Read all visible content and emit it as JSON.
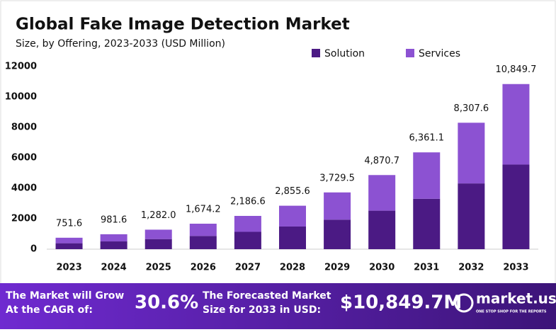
{
  "chart_data": {
    "type": "stacked-bar",
    "title": "Global Fake Image Detection Market",
    "subtitle": "Size, by Offering, 2023-2033 (USD Million)",
    "categories": [
      "2023",
      "2024",
      "2025",
      "2026",
      "2027",
      "2028",
      "2029",
      "2030",
      "2031",
      "2032",
      "2033"
    ],
    "series": [
      {
        "name": "Solution",
        "color": "#4b1a84",
        "values": [
          390,
          510,
          665,
          870,
          1140,
          1490,
          1940,
          2530,
          3310,
          4320,
          5560
        ]
      },
      {
        "name": "Services",
        "color": "#8c52d2",
        "values": [
          361.6,
          471.6,
          617.0,
          804.2,
          1046.6,
          1365.6,
          1789.5,
          2340.7,
          3051.1,
          3987.6,
          5289.7
        ]
      }
    ],
    "totals": [
      751.6,
      981.6,
      1282.0,
      1674.2,
      2186.6,
      2855.6,
      3729.5,
      4870.7,
      6361.1,
      8307.6,
      10849.7
    ],
    "total_labels": [
      "751.6",
      "981.6",
      "1,282.0",
      "1,674.2",
      "2,186.6",
      "2,855.6",
      "3,729.5",
      "4,870.7",
      "6,361.1",
      "8,307.6",
      "10,849.7"
    ],
    "ylim": [
      0,
      12000
    ],
    "yticks": [
      0,
      2000,
      4000,
      6000,
      8000,
      10000,
      12000
    ],
    "grid": false,
    "legend": "top-right"
  },
  "footer": {
    "cagr_text": "The Market will Grow At the CAGR of:",
    "cagr_value": "30.6%",
    "forecast_text": "The Forecasted Market Size for 2033 in USD:",
    "forecast_value": "$10,849.7M",
    "brand": "market.us",
    "tagline": "ONE STOP SHOP FOR THE REPORTS"
  }
}
